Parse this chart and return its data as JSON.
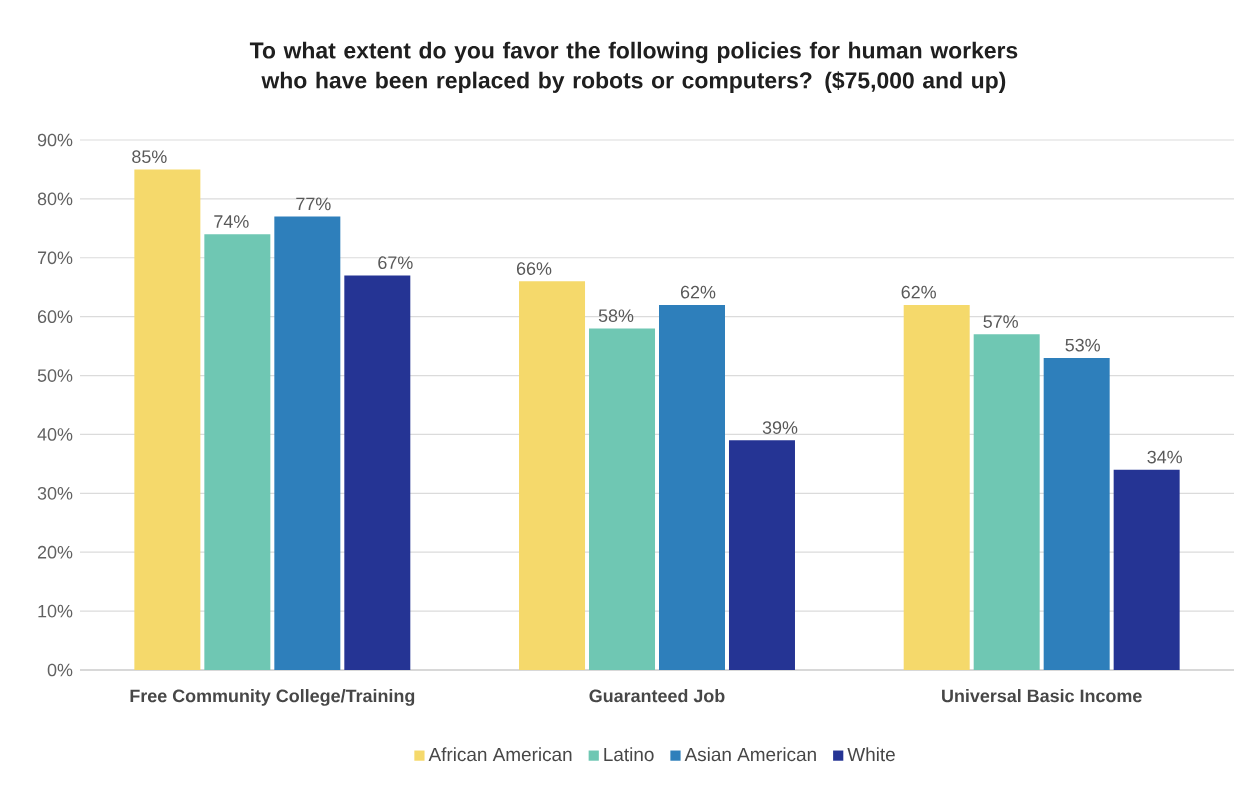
{
  "chart_data": {
    "type": "bar",
    "title": "To what extent do you favor the following policies for human workers who have been replaced by robots or computers? ($75,000 and up)",
    "categories": [
      "Free Community College/Training",
      "Guaranteed Job",
      "Universal Basic Income"
    ],
    "series": [
      {
        "name": "African American",
        "color": "#f5d96b",
        "values": [
          85,
          66,
          62
        ],
        "value_labels": [
          "85%",
          "66%",
          "62%"
        ]
      },
      {
        "name": "Latino",
        "color": "#6fc7b3",
        "values": [
          74,
          58,
          57
        ],
        "value_labels": [
          "74%",
          "58%",
          "57%"
        ]
      },
      {
        "name": "Asian American",
        "color": "#2e7fbb",
        "values": [
          77,
          62,
          53
        ],
        "value_labels": [
          "77%",
          "62%",
          "53%"
        ]
      },
      {
        "name": "White",
        "color": "#253494",
        "values": [
          67,
          39,
          34
        ],
        "value_labels": [
          "67%",
          "39%",
          "34%"
        ]
      }
    ],
    "ylim": [
      0,
      90
    ],
    "yticks": [
      {
        "value": 0,
        "label": "0%"
      },
      {
        "value": 10,
        "label": "10%"
      },
      {
        "value": 20,
        "label": "20%"
      },
      {
        "value": 30,
        "label": "30%"
      },
      {
        "value": 40,
        "label": "40%"
      },
      {
        "value": 50,
        "label": "50%"
      },
      {
        "value": 60,
        "label": "60%"
      },
      {
        "value": 70,
        "label": "70%"
      },
      {
        "value": 80,
        "label": "80%"
      },
      {
        "value": 90,
        "label": "90%"
      }
    ],
    "grid": "y",
    "legend": "bottom"
  }
}
